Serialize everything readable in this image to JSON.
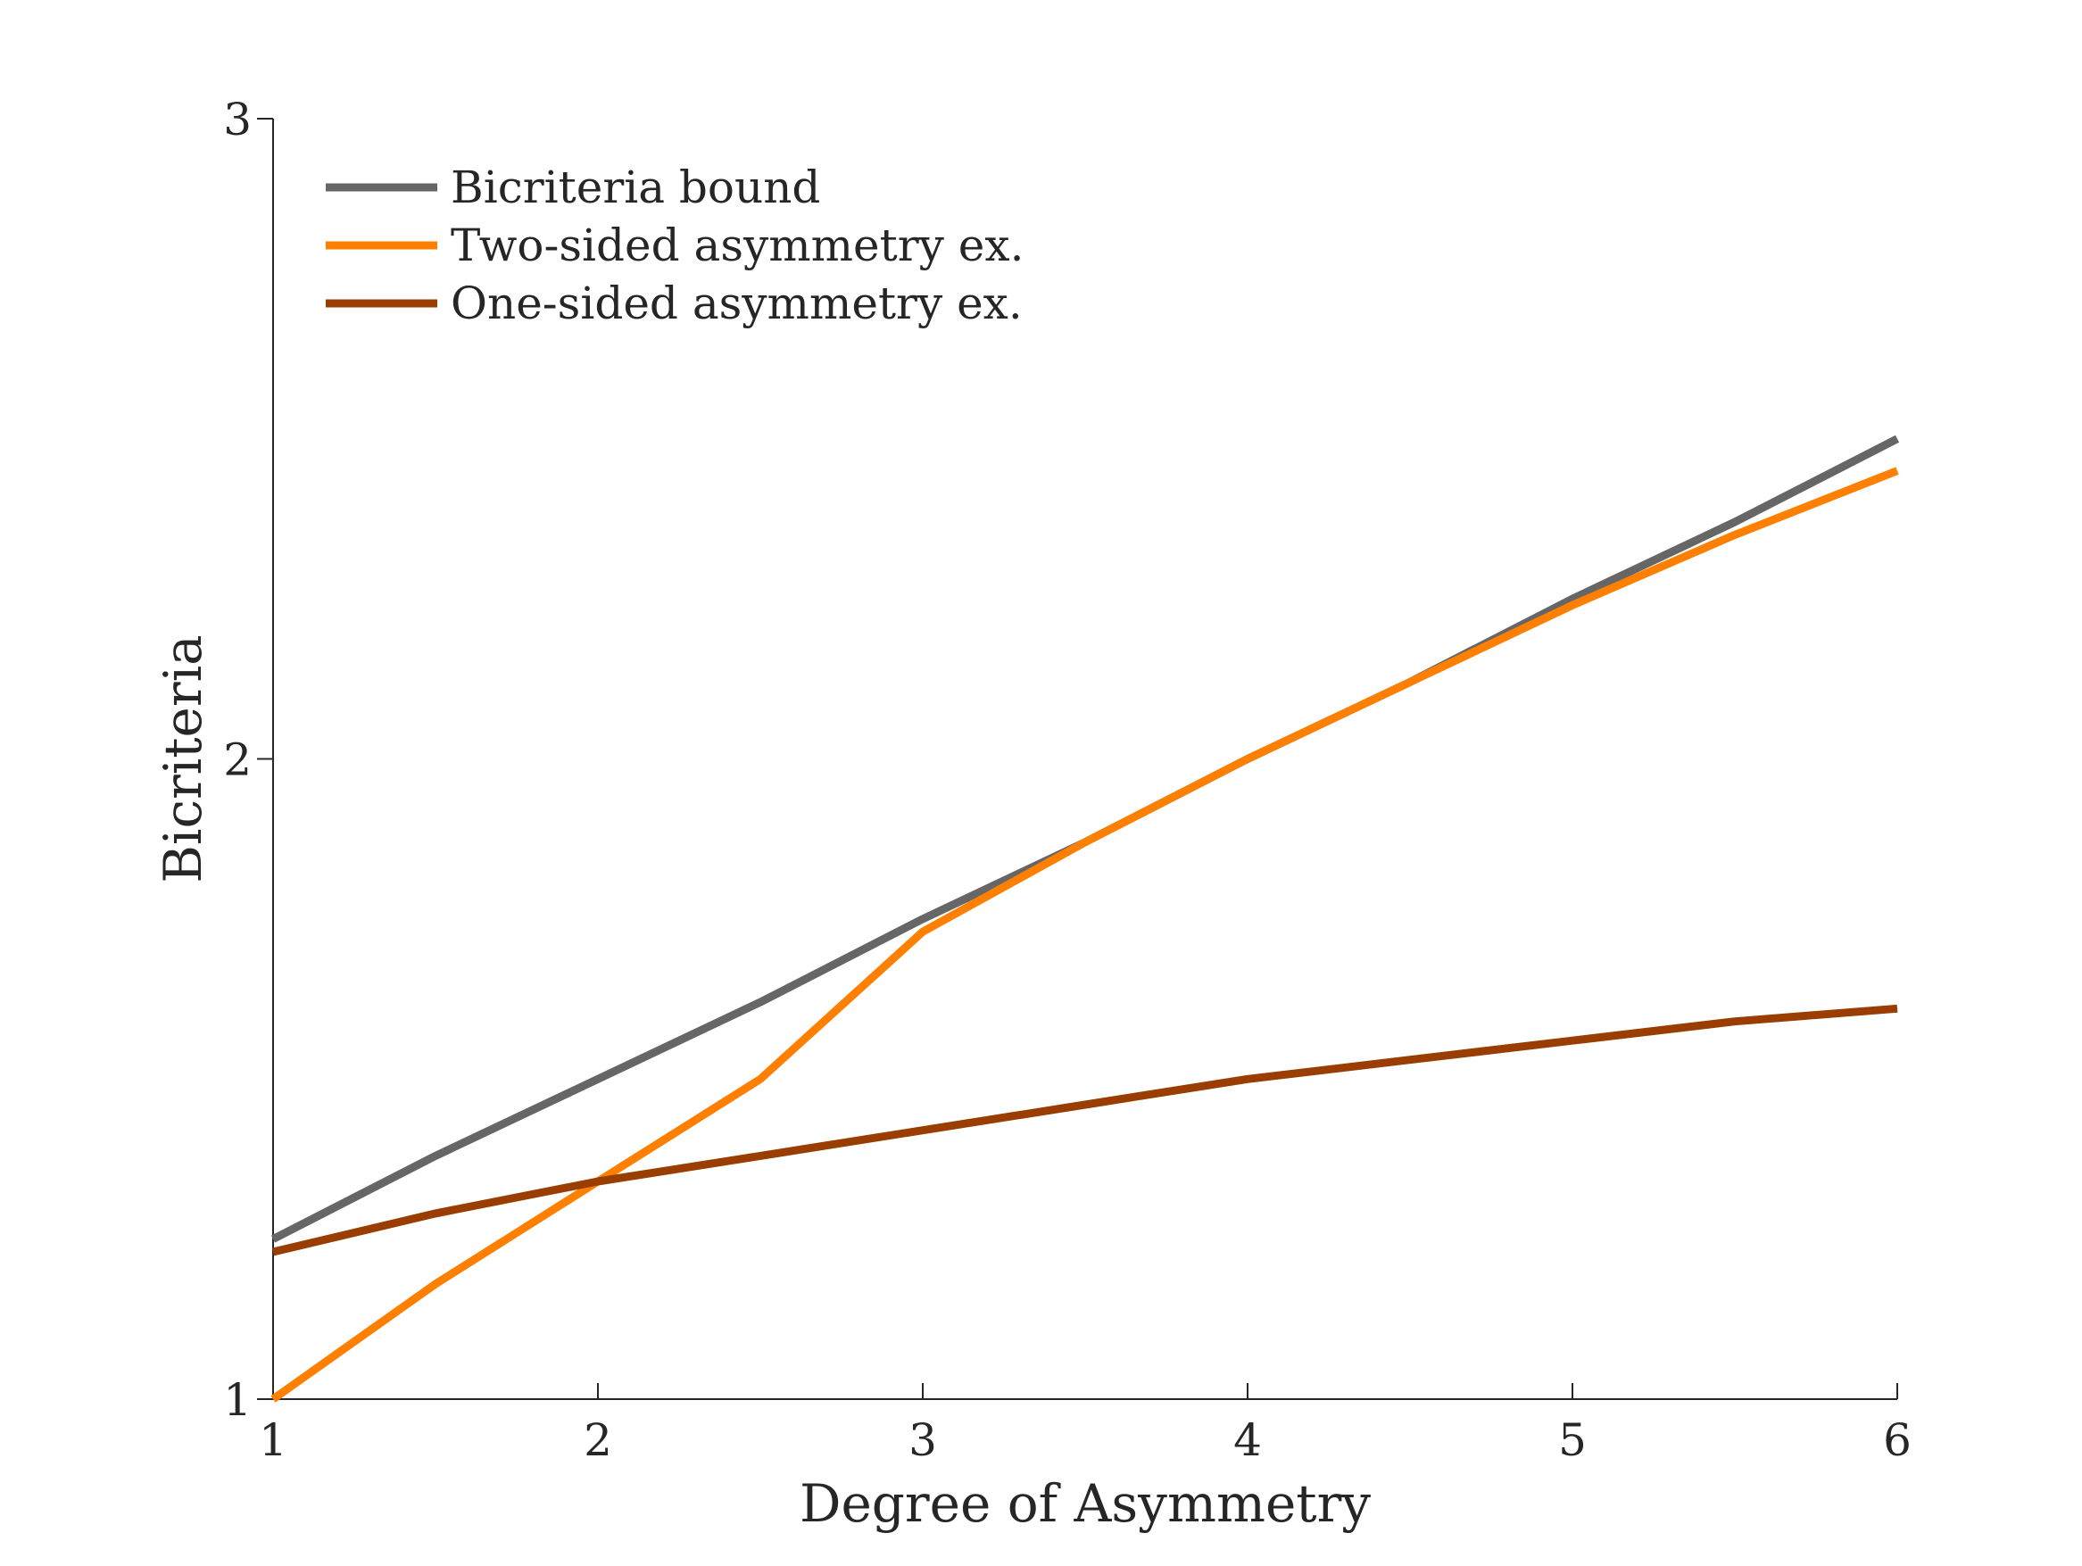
{
  "chart_data": {
    "type": "line",
    "title": "",
    "xlabel": "Degree of Asymmetry",
    "ylabel": "Bicriteria",
    "xlim": [
      1,
      6
    ],
    "ylim": [
      1,
      3
    ],
    "xticks": [
      "1",
      "2",
      "3",
      "4",
      "5",
      "6"
    ],
    "yticks": [
      "1",
      "2",
      "3"
    ],
    "grid": false,
    "legend": {
      "position": "top-left"
    },
    "series": [
      {
        "name": "Bicriteria bound",
        "color": "#666666",
        "x": [
          1,
          1.5,
          2,
          2.5,
          3,
          3.5,
          4,
          4.5,
          5,
          5.5,
          6
        ],
        "y": [
          1.25,
          1.38,
          1.5,
          1.62,
          1.75,
          1.87,
          2.0,
          2.12,
          2.25,
          2.37,
          2.5
        ]
      },
      {
        "name": "Two-sided asymmetry ex.",
        "color": "#ff8000",
        "x": [
          1,
          1.25,
          1.5,
          1.75,
          2,
          2.5,
          3,
          3.5,
          4,
          4.5,
          5,
          5.5,
          6
        ],
        "y": [
          1.0,
          1.09,
          1.18,
          1.26,
          1.34,
          1.5,
          1.73,
          1.87,
          2.0,
          2.12,
          2.24,
          2.35,
          2.45
        ]
      },
      {
        "name": "One-sided asymmetry ex.",
        "color": "#993d00",
        "x": [
          1,
          1.5,
          2,
          2.5,
          3,
          3.5,
          4,
          4.5,
          5,
          5.5,
          6
        ],
        "y": [
          1.23,
          1.29,
          1.34,
          1.38,
          1.42,
          1.46,
          1.5,
          1.53,
          1.56,
          1.59,
          1.61
        ]
      }
    ]
  }
}
